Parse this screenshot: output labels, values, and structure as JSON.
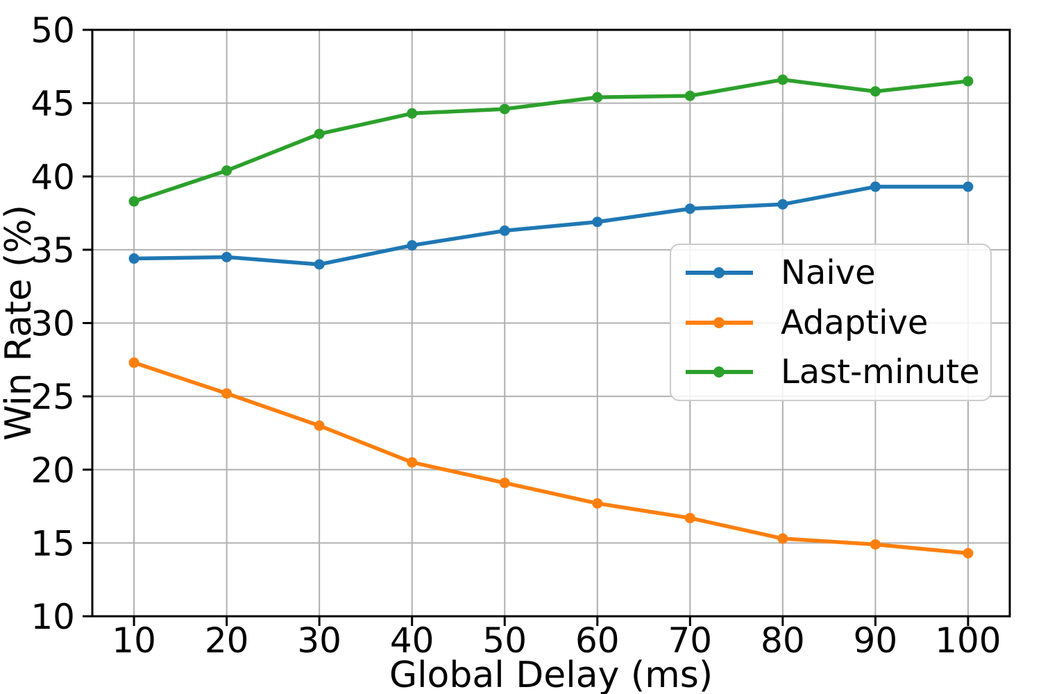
{
  "chart_data": {
    "type": "line",
    "title": "",
    "xlabel": "Global Delay (ms)",
    "ylabel": "Win Rate (%)",
    "x": [
      10,
      20,
      30,
      40,
      50,
      60,
      70,
      80,
      90,
      100
    ],
    "series": [
      {
        "name": "Naive",
        "color": "#1f77b4",
        "marker": "circle",
        "values": [
          34.4,
          34.5,
          34.0,
          35.3,
          36.3,
          36.9,
          37.8,
          38.1,
          39.3,
          39.3
        ]
      },
      {
        "name": "Adaptive",
        "color": "#ff7f0e",
        "marker": "circle",
        "values": [
          27.3,
          25.2,
          23.0,
          20.5,
          19.1,
          17.7,
          16.7,
          15.3,
          14.9,
          14.3
        ]
      },
      {
        "name": "Last-minute",
        "color": "#2ca02c",
        "marker": "circle",
        "values": [
          38.3,
          40.4,
          42.9,
          44.3,
          44.6,
          45.4,
          45.5,
          46.6,
          45.8,
          46.5
        ]
      }
    ],
    "xticks": [
      10,
      20,
      30,
      40,
      50,
      60,
      70,
      80,
      90,
      100
    ],
    "yticks": [
      10,
      15,
      20,
      25,
      30,
      35,
      40,
      45,
      50
    ],
    "xlim": [
      5.5,
      104.5
    ],
    "ylim": [
      10,
      50
    ],
    "grid": true,
    "legend": {
      "position": "center-right",
      "labels": [
        "Naive",
        "Adaptive",
        "Last-minute"
      ]
    }
  },
  "styles": {
    "background": "#ffffff",
    "grid_color": "#b0b0b0",
    "spine_color": "#000000",
    "tick_color": "#000000",
    "legend_border": "#cccccc"
  }
}
